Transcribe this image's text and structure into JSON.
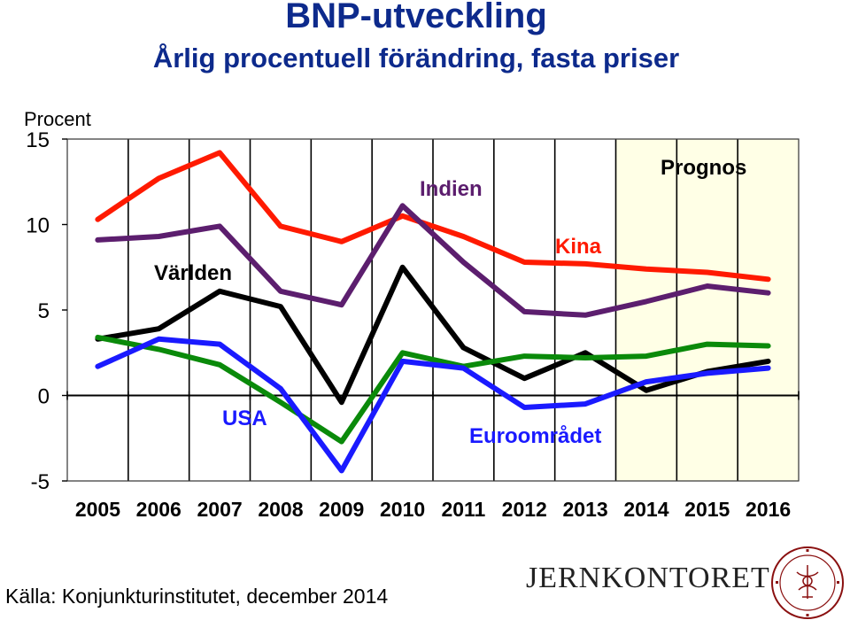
{
  "title": "BNP-utveckling",
  "subtitle": "Årlig procentuell förändring, fasta priser",
  "source": "Källa: Konjunkturinstitutet, december 2014",
  "logo": {
    "text": "JERNKONTORET",
    "seal_text": "JERNKONTOIRETS SIGILL"
  },
  "colors": {
    "title": "#0d2a8c",
    "forecast_bg": "#ffffe6"
  },
  "chart_data": {
    "type": "line",
    "ylabel": "Procent",
    "xlabel": "",
    "ylim": [
      -5,
      15
    ],
    "yticks": [
      -5,
      0,
      5,
      10,
      15
    ],
    "grid": "vertical",
    "x": [
      "2005",
      "2006",
      "2007",
      "2008",
      "2009",
      "2010",
      "2011",
      "2012",
      "2013",
      "2014",
      "2015",
      "2016"
    ],
    "forecast": {
      "label": "Prognos",
      "from_index": 9
    },
    "series": [
      {
        "name": "Kina",
        "color": "#ff1a00",
        "values": [
          10.3,
          12.7,
          14.2,
          9.9,
          9.0,
          10.5,
          9.3,
          7.8,
          7.7,
          7.4,
          7.2,
          6.8
        ]
      },
      {
        "name": "Indien",
        "color": "#5c1e6e",
        "values": [
          9.1,
          9.3,
          9.9,
          6.1,
          5.3,
          11.1,
          7.8,
          4.9,
          4.7,
          5.5,
          6.4,
          6.0
        ]
      },
      {
        "name": "Världen",
        "color": "#000000",
        "values": [
          3.3,
          3.9,
          6.1,
          5.2,
          -0.4,
          7.5,
          2.8,
          1.0,
          2.5,
          0.3,
          1.4,
          2.0
        ]
      },
      {
        "name": "Euroområdet",
        "color": "#0a8a0a",
        "values": [
          3.4,
          2.7,
          1.8,
          -0.4,
          -2.7,
          2.5,
          1.7,
          2.3,
          2.2,
          2.3,
          3.0,
          2.9
        ]
      },
      {
        "name": "USA",
        "color": "#1a1aff",
        "values": [
          1.7,
          3.3,
          3.0,
          0.4,
          -4.4,
          2.0,
          1.6,
          -0.7,
          -0.5,
          0.8,
          1.3,
          1.6
        ]
      }
    ],
    "annotations": [
      {
        "text": "Indien",
        "color": "#5c1e6e"
      },
      {
        "text": "Kina",
        "color": "#ff1a00"
      },
      {
        "text": "Världen",
        "color": "#000000"
      },
      {
        "text": "USA",
        "color": "#1a1aff"
      },
      {
        "text": "Euroområdet",
        "color": "#1a1aff"
      }
    ]
  }
}
